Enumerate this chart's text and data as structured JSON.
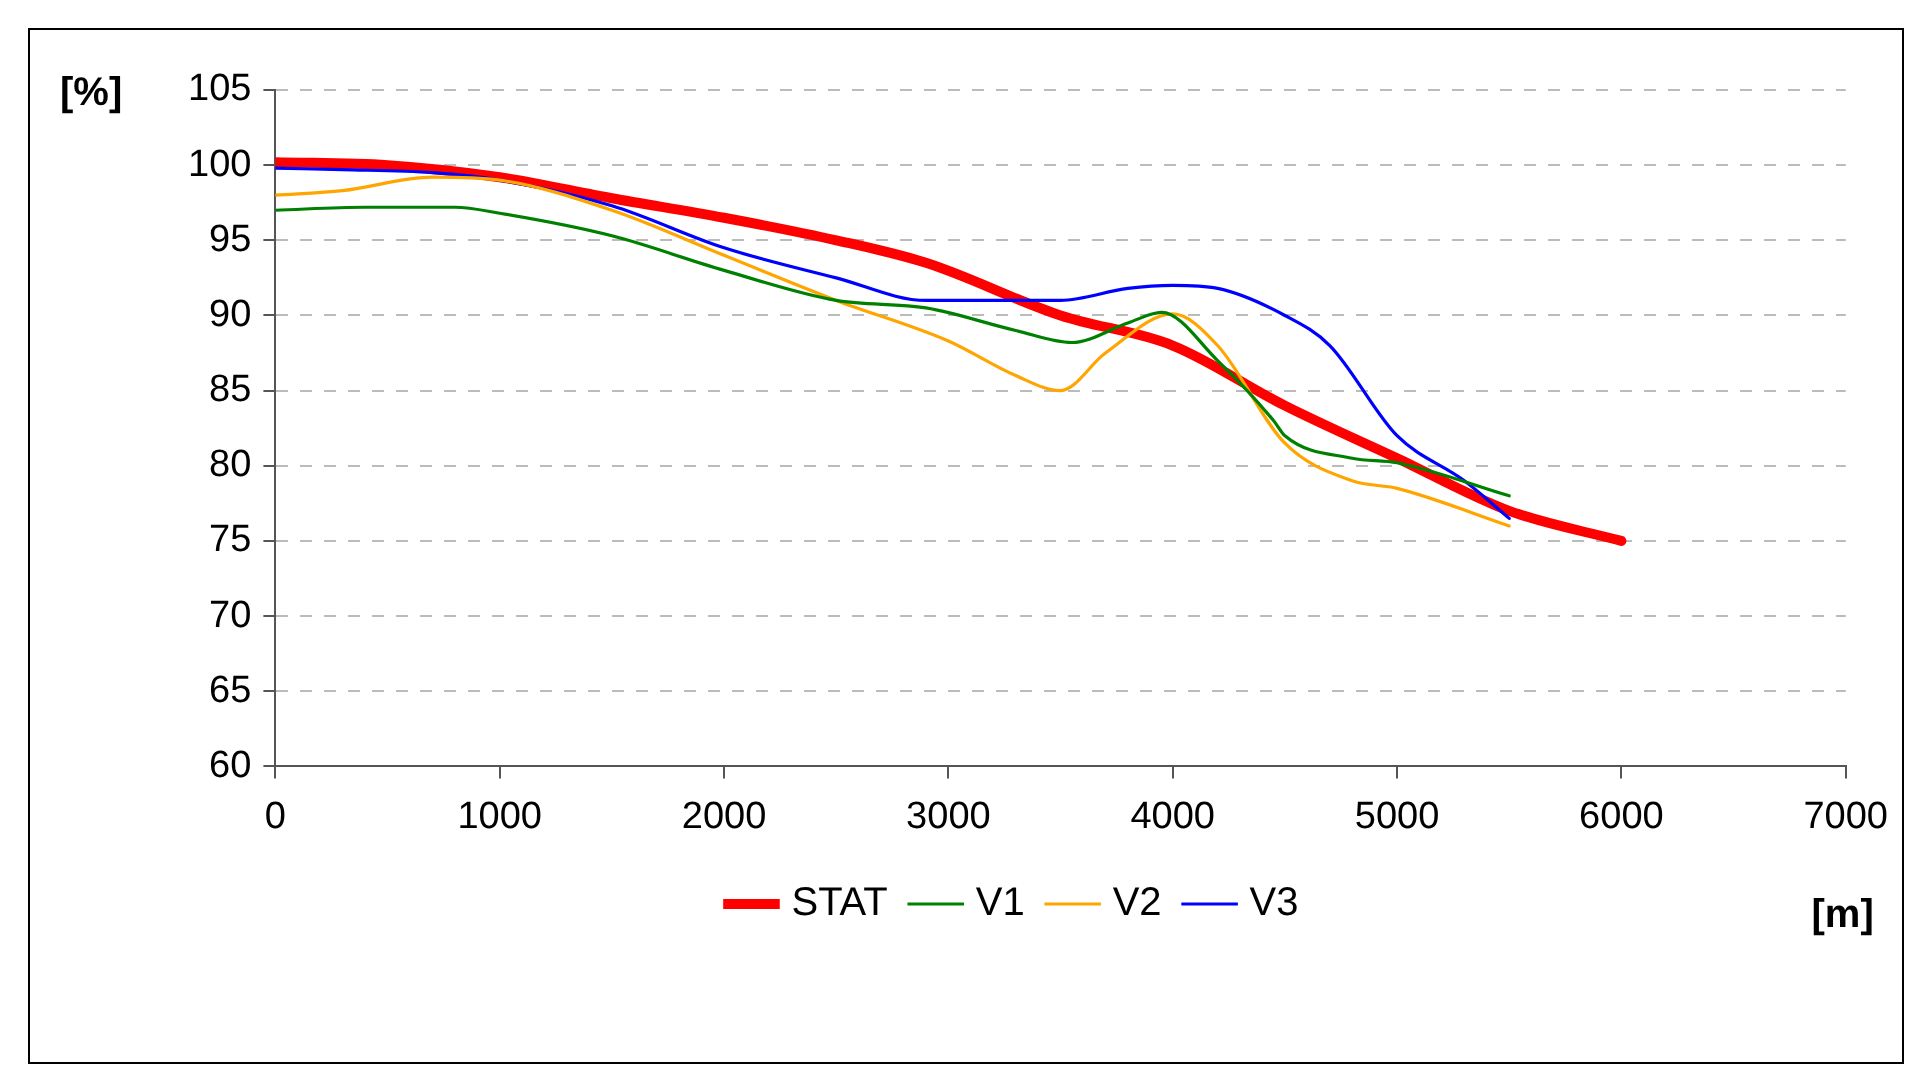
{
  "chart_data": {
    "type": "line",
    "xlabel": "[m]",
    "ylabel": "[%]",
    "xlim": [
      0,
      7000
    ],
    "xticks": [
      0,
      1000,
      2000,
      3000,
      4000,
      5000,
      6000,
      7000
    ],
    "ylim": [
      60,
      105
    ],
    "yticks": [
      60,
      65,
      70,
      75,
      80,
      85,
      90,
      95,
      100,
      105
    ],
    "grid": "y",
    "legend": "bottom",
    "marker": "none",
    "line_style": "solid",
    "series": [
      {
        "name": "STAT",
        "color": "#ff0000",
        "x": [
          0,
          500,
          1000,
          1500,
          2000,
          2500,
          2900,
          3500,
          4000,
          4500,
          5000,
          5500,
          6000
        ],
        "values": [
          100.2,
          100,
          99.2,
          97.8,
          96.5,
          95,
          93.5,
          90,
          88,
          84,
          80.5,
          77,
          75
        ]
      },
      {
        "name": "V1",
        "color": "#008000",
        "x": [
          0,
          400,
          800,
          1000,
          1500,
          2000,
          2500,
          2900,
          3300,
          3550,
          3800,
          3950,
          4200,
          4450,
          4500,
          4800,
          5000,
          5500
        ],
        "values": [
          97,
          97.2,
          97.2,
          96.8,
          95.3,
          93,
          91,
          90.5,
          89,
          88.2,
          89.5,
          90.2,
          87,
          83,
          82,
          80.5,
          80.2,
          78
        ]
      },
      {
        "name": "V2",
        "color": "#ffa500",
        "x": [
          0,
          300,
          700,
          1000,
          1500,
          2000,
          2500,
          3000,
          3300,
          3500,
          3700,
          4000,
          4200,
          4500,
          4800,
          5000,
          5500
        ],
        "values": [
          98,
          98.3,
          99.2,
          99,
          97,
          94,
          91,
          88.3,
          86,
          85,
          87.5,
          90.1,
          88,
          81.5,
          79,
          78.5,
          76
        ]
      },
      {
        "name": "V3",
        "color": "#0000ff",
        "x": [
          0,
          300,
          700,
          1000,
          1500,
          2000,
          2500,
          2900,
          3500,
          3800,
          4000,
          4200,
          4500,
          4700,
          5000,
          5300,
          5500
        ],
        "values": [
          99.8,
          99.7,
          99.5,
          99,
          97.3,
          94.5,
          92.5,
          91,
          91,
          91.8,
          92,
          91.8,
          90,
          88,
          82,
          79,
          76.5
        ]
      }
    ]
  }
}
